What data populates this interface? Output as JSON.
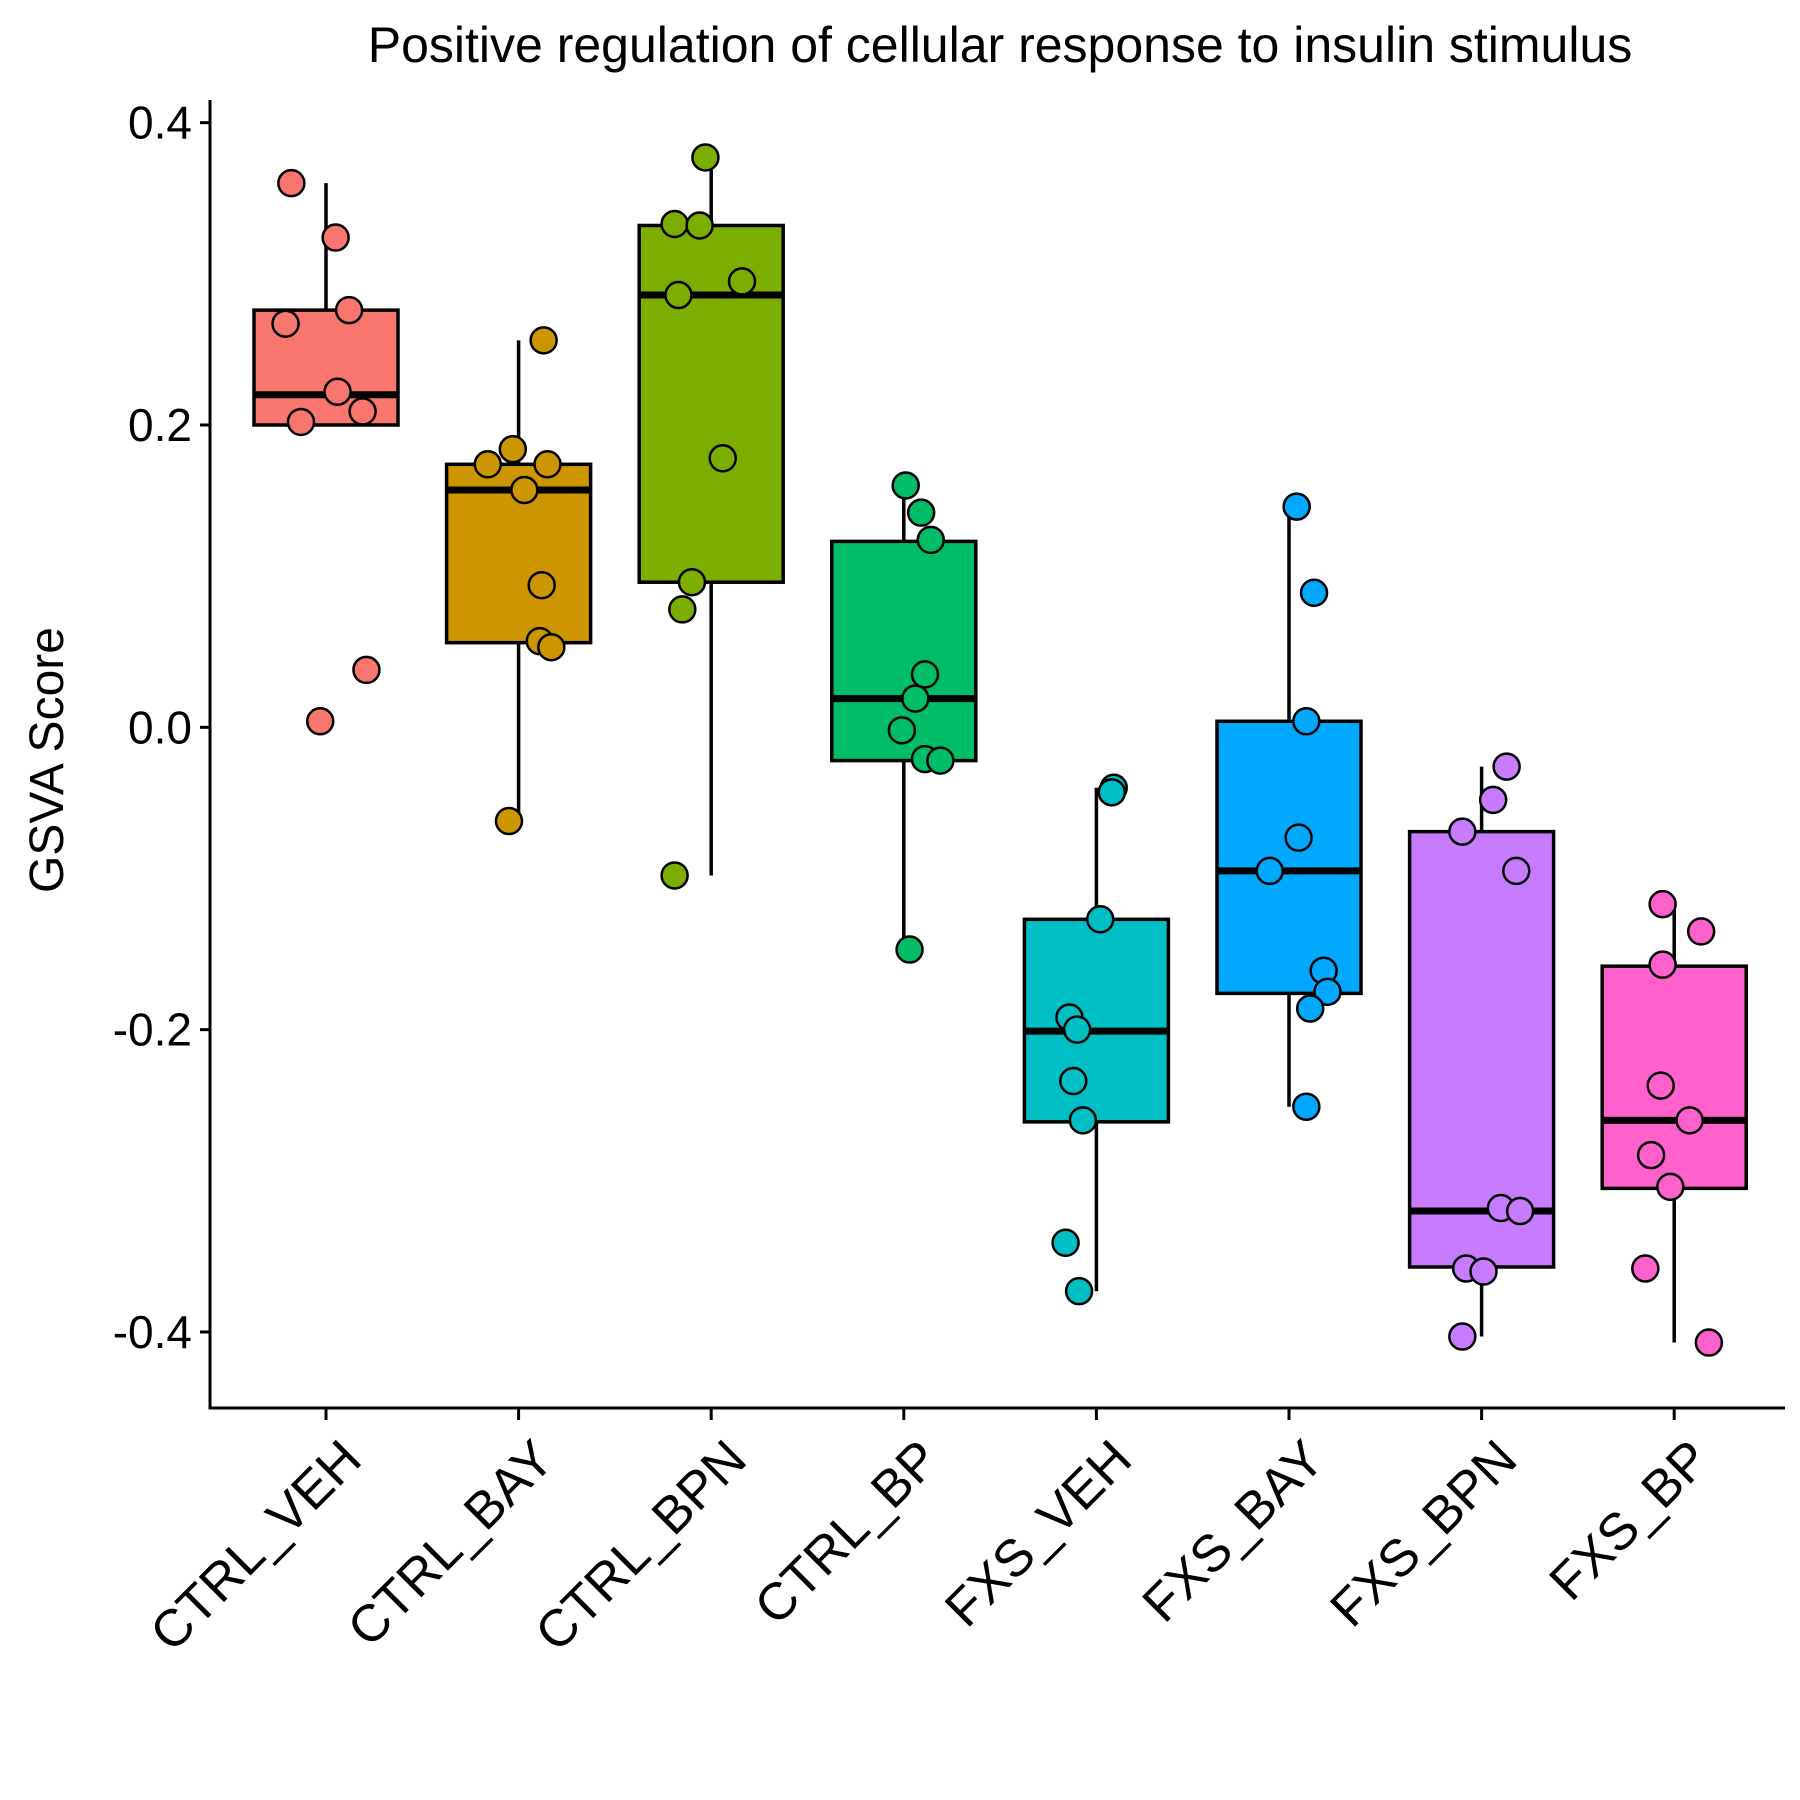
{
  "chart_data": {
    "type": "box",
    "title": "Positive regulation of cellular response to insulin stimulus",
    "xlabel": "",
    "ylabel": "GSVA Score",
    "ylim": [
      -0.445,
      0.415
    ],
    "yticks": [
      -0.4,
      -0.2,
      0.0,
      0.2,
      0.4
    ],
    "ytick_labels": [
      "-0.4",
      "-0.2",
      "0.0",
      "0.2",
      "0.4"
    ],
    "grid": false,
    "legend": "none",
    "categories": [
      "CTRL_VEH",
      "CTRL_BAY",
      "CTRL_BPN",
      "CTRL_BP",
      "FXS_VEH",
      "FXS_BAY",
      "FXS_BPN",
      "FXS_BP"
    ],
    "colors": [
      "#F8766D",
      "#CD9600",
      "#7CAE00",
      "#00BE67",
      "#00BFC4",
      "#00A9FF",
      "#C77CFF",
      "#FF61CC"
    ],
    "boxes": [
      {
        "whisker_low": 0.2,
        "q1": 0.2,
        "median": 0.22,
        "q3": 0.276,
        "whisker_high": 0.36
      },
      {
        "whisker_low": -0.062,
        "q1": 0.056,
        "median": 0.157,
        "q3": 0.174,
        "whisker_high": 0.256
      },
      {
        "whisker_low": -0.098,
        "q1": 0.096,
        "median": 0.286,
        "q3": 0.332,
        "whisker_high": 0.377
      },
      {
        "whisker_low": -0.147,
        "q1": -0.022,
        "median": 0.019,
        "q3": 0.123,
        "whisker_high": 0.16
      },
      {
        "whisker_low": -0.373,
        "q1": -0.261,
        "median": -0.201,
        "q3": -0.127,
        "whisker_high": -0.04
      },
      {
        "whisker_low": -0.251,
        "q1": -0.176,
        "median": -0.095,
        "q3": 0.004,
        "whisker_high": 0.146
      },
      {
        "whisker_low": -0.403,
        "q1": -0.357,
        "median": -0.32,
        "q3": -0.069,
        "whisker_high": -0.026
      },
      {
        "whisker_low": -0.407,
        "q1": -0.305,
        "median": -0.26,
        "q3": -0.158,
        "whisker_high": -0.117
      }
    ],
    "points": [
      [
        {
          "dx": -0.18,
          "y": 0.36
        },
        {
          "dx": 0.05,
          "y": 0.324
        },
        {
          "dx": -0.21,
          "y": 0.267
        },
        {
          "dx": 0.12,
          "y": 0.276
        },
        {
          "dx": 0.06,
          "y": 0.222
        },
        {
          "dx": -0.13,
          "y": 0.202
        },
        {
          "dx": 0.19,
          "y": 0.209
        },
        {
          "dx": 0.21,
          "y": 0.038
        },
        {
          "dx": -0.03,
          "y": 0.004
        }
      ],
      [
        {
          "dx": -0.03,
          "y": 0.184
        },
        {
          "dx": -0.16,
          "y": 0.174
        },
        {
          "dx": 0.15,
          "y": 0.174
        },
        {
          "dx": 0.03,
          "y": 0.157
        },
        {
          "dx": 0.13,
          "y": 0.256
        },
        {
          "dx": 0.12,
          "y": 0.094
        },
        {
          "dx": 0.11,
          "y": 0.057
        },
        {
          "dx": 0.17,
          "y": 0.053
        },
        {
          "dx": -0.05,
          "y": -0.062
        }
      ],
      [
        {
          "dx": -0.03,
          "y": 0.377
        },
        {
          "dx": -0.19,
          "y": 0.333
        },
        {
          "dx": -0.06,
          "y": 0.332
        },
        {
          "dx": 0.16,
          "y": 0.295
        },
        {
          "dx": -0.17,
          "y": 0.286
        },
        {
          "dx": 0.06,
          "y": 0.178
        },
        {
          "dx": -0.1,
          "y": 0.096
        },
        {
          "dx": -0.15,
          "y": 0.078
        },
        {
          "dx": -0.19,
          "y": -0.098
        }
      ],
      [
        {
          "dx": 0.01,
          "y": 0.16
        },
        {
          "dx": 0.09,
          "y": 0.142
        },
        {
          "dx": 0.14,
          "y": 0.124
        },
        {
          "dx": 0.11,
          "y": 0.035
        },
        {
          "dx": 0.06,
          "y": 0.019
        },
        {
          "dx": -0.01,
          "y": -0.002
        },
        {
          "dx": 0.11,
          "y": -0.021
        },
        {
          "dx": 0.19,
          "y": -0.022
        },
        {
          "dx": 0.03,
          "y": -0.147
        }
      ],
      [
        {
          "dx": 0.09,
          "y": -0.04
        },
        {
          "dx": 0.08,
          "y": -0.043
        },
        {
          "dx": 0.02,
          "y": -0.127
        },
        {
          "dx": -0.14,
          "y": -0.192
        },
        {
          "dx": -0.1,
          "y": -0.2
        },
        {
          "dx": -0.12,
          "y": -0.234
        },
        {
          "dx": -0.07,
          "y": -0.26
        },
        {
          "dx": -0.16,
          "y": -0.341
        },
        {
          "dx": -0.09,
          "y": -0.373
        }
      ],
      [
        {
          "dx": 0.04,
          "y": 0.146
        },
        {
          "dx": 0.13,
          "y": 0.089
        },
        {
          "dx": 0.09,
          "y": 0.004
        },
        {
          "dx": 0.05,
          "y": -0.073
        },
        {
          "dx": -0.1,
          "y": -0.095
        },
        {
          "dx": 0.18,
          "y": -0.161
        },
        {
          "dx": 0.2,
          "y": -0.175
        },
        {
          "dx": 0.11,
          "y": -0.186
        },
        {
          "dx": 0.09,
          "y": -0.251
        }
      ],
      [
        {
          "dx": 0.13,
          "y": -0.026
        },
        {
          "dx": 0.06,
          "y": -0.048
        },
        {
          "dx": -0.1,
          "y": -0.069
        },
        {
          "dx": 0.18,
          "y": -0.095
        },
        {
          "dx": 0.1,
          "y": -0.318
        },
        {
          "dx": 0.2,
          "y": -0.32
        },
        {
          "dx": -0.08,
          "y": -0.358
        },
        {
          "dx": 0.01,
          "y": -0.36
        },
        {
          "dx": -0.1,
          "y": -0.403
        }
      ],
      [
        {
          "dx": -0.06,
          "y": -0.117
        },
        {
          "dx": 0.14,
          "y": -0.135
        },
        {
          "dx": -0.06,
          "y": -0.157
        },
        {
          "dx": -0.07,
          "y": -0.237
        },
        {
          "dx": 0.08,
          "y": -0.26
        },
        {
          "dx": -0.12,
          "y": -0.283
        },
        {
          "dx": -0.02,
          "y": -0.304
        },
        {
          "dx": -0.15,
          "y": -0.358
        },
        {
          "dx": 0.18,
          "y": -0.407
        }
      ]
    ]
  }
}
